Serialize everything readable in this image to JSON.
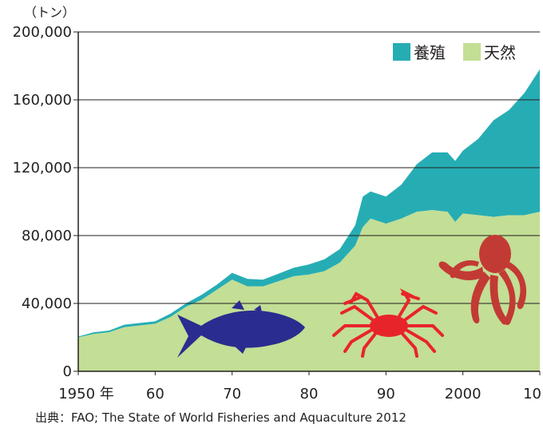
{
  "chart_data": {
    "type": "area",
    "stacked": true,
    "y_unit": "（トン）",
    "ylim": [
      0,
      200000
    ],
    "y_ticks": [
      "200,000",
      "160,000",
      "120,000",
      "80,000",
      "40,000",
      "0"
    ],
    "x_range": [
      1950,
      2010
    ],
    "x_ticks": [
      "1950 年",
      "60",
      "70",
      "80",
      "90",
      "2000",
      "10"
    ],
    "series": [
      {
        "name": "天然",
        "color": "#c3de95",
        "x": [
          1950,
          1952,
          1954,
          1956,
          1958,
          1960,
          1962,
          1964,
          1966,
          1968,
          1970,
          1972,
          1974,
          1976,
          1978,
          1980,
          1982,
          1984,
          1986,
          1987,
          1988,
          1990,
          1992,
          1994,
          1996,
          1998,
          1999,
          2000,
          2002,
          2004,
          2006,
          2008,
          2010
        ],
        "values": [
          20000,
          22000,
          23000,
          26000,
          27000,
          28000,
          32000,
          38000,
          42000,
          48000,
          54000,
          50000,
          50000,
          53000,
          56000,
          57000,
          59000,
          64000,
          74000,
          85000,
          90000,
          87000,
          90000,
          94000,
          95000,
          94000,
          88000,
          93000,
          92000,
          91000,
          92000,
          92000,
          94000
        ]
      },
      {
        "name": "養殖",
        "color": "#26adb4",
        "x": [
          1950,
          1952,
          1954,
          1956,
          1958,
          1960,
          1962,
          1964,
          1966,
          1968,
          1970,
          1972,
          1974,
          1976,
          1978,
          1980,
          1982,
          1984,
          1986,
          1987,
          1988,
          1990,
          1992,
          1994,
          1996,
          1998,
          1999,
          2000,
          2002,
          2004,
          2006,
          2008,
          2010
        ],
        "values": [
          500,
          1000,
          1000,
          1500,
          1500,
          1500,
          2000,
          2000,
          3000,
          3000,
          4000,
          4500,
          4000,
          4500,
          5000,
          6000,
          7000,
          8000,
          12000,
          18000,
          16000,
          16000,
          20000,
          28000,
          34000,
          35000,
          36000,
          37000,
          45000,
          57000,
          62000,
          72000,
          84000
        ]
      }
    ]
  },
  "source": "出典：FAO; The State of World Fisheries and Aquaculture 2012",
  "colors": {
    "tuna": "#2a2d8f",
    "crab": "#e8242b",
    "octopus": "#c23a34",
    "axis": "#231f20"
  }
}
